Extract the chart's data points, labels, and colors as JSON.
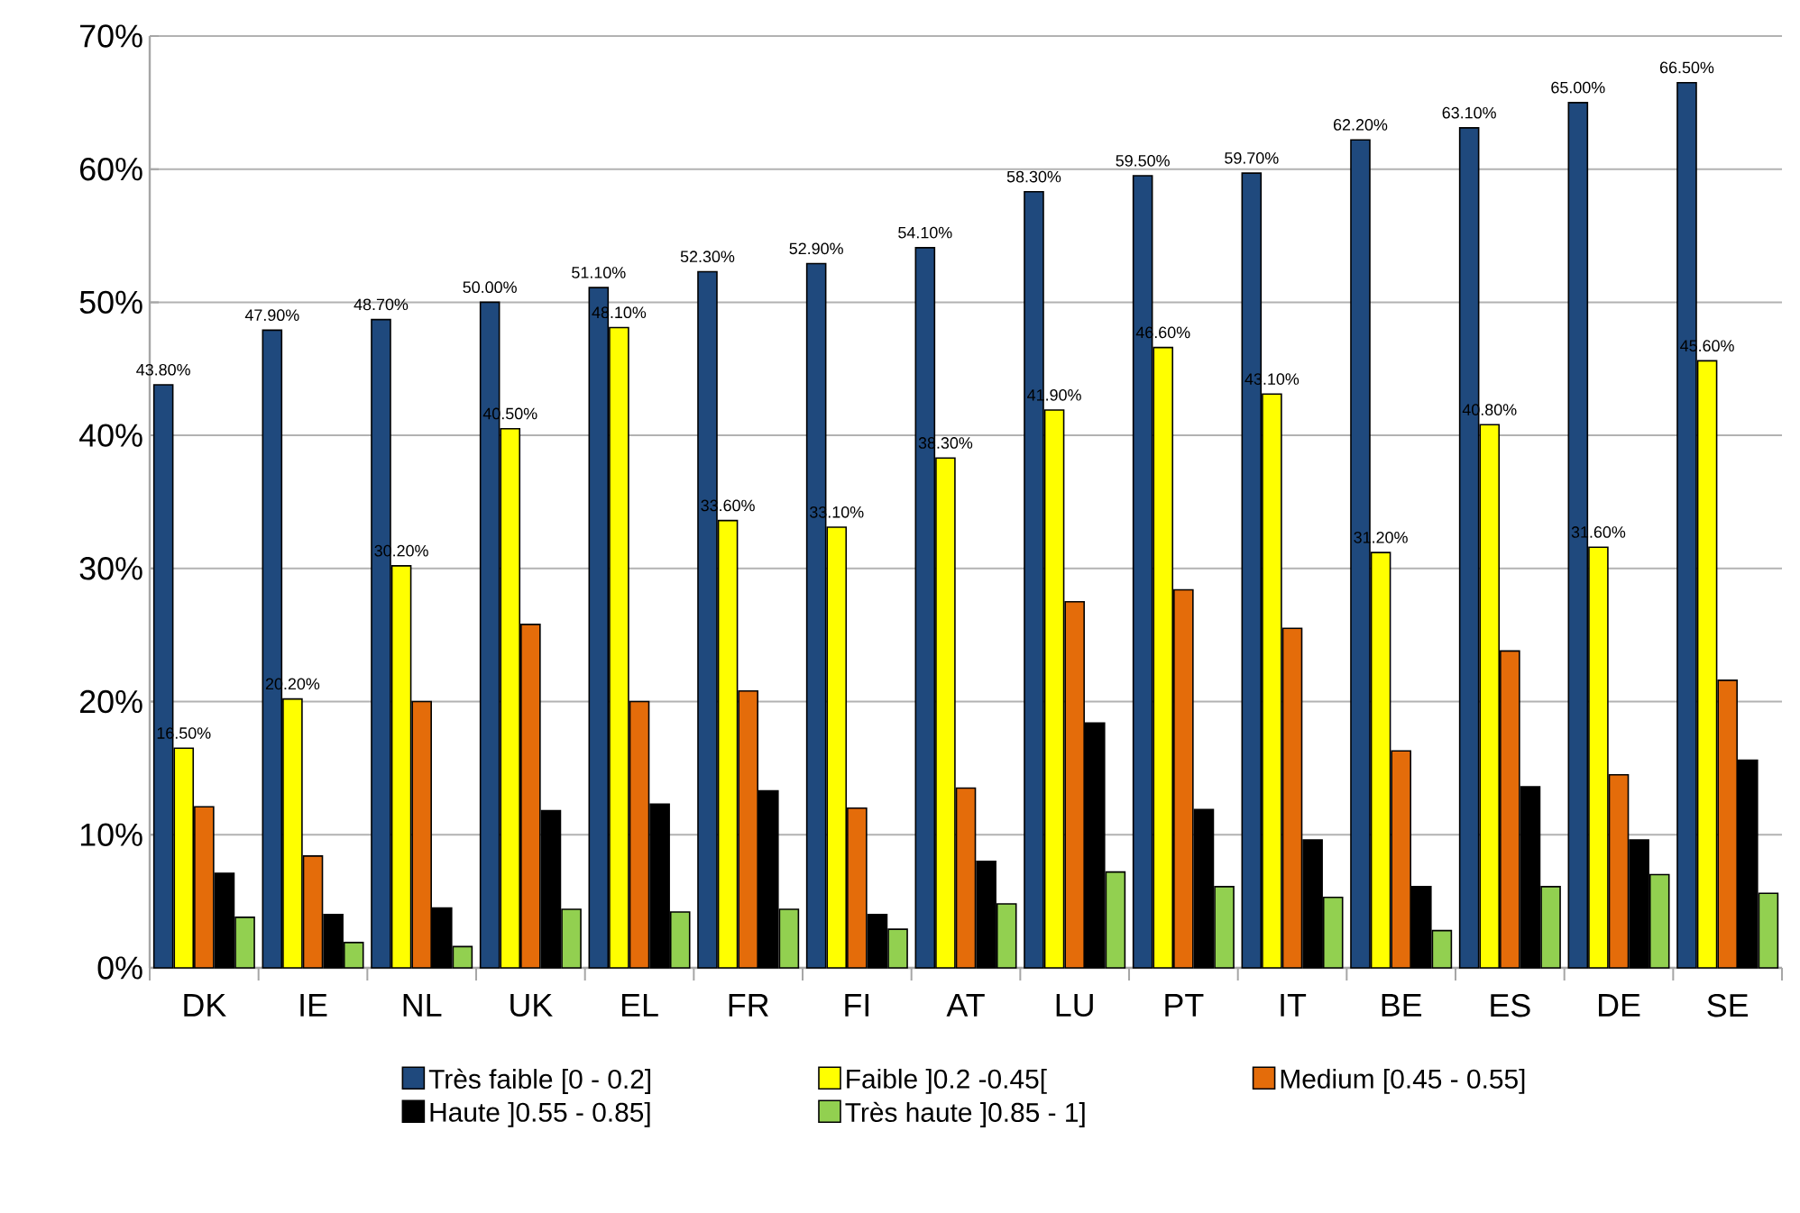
{
  "chart_data": {
    "type": "bar",
    "categories": [
      "DK",
      "IE",
      "NL",
      "UK",
      "EL",
      "FR",
      "FI",
      "AT",
      "LU",
      "PT",
      "IT",
      "BE",
      "ES",
      "DE",
      "SE"
    ],
    "series": [
      {
        "name": "Très faible [0 - 0.2]",
        "color": "#1f497d",
        "values": [
          43.8,
          47.9,
          48.7,
          50.0,
          51.1,
          52.3,
          52.9,
          54.1,
          58.3,
          59.5,
          59.7,
          62.2,
          63.1,
          65.0,
          66.5
        ],
        "value_labels": [
          "43.80%",
          "47.90%",
          "48.70%",
          "50.00%",
          "51.10%",
          "52.30%",
          "52.90%",
          "54.10%",
          "58.30%",
          "59.50%",
          "59.70%",
          "62.20%",
          "63.10%",
          "65.00%",
          "66.50%"
        ]
      },
      {
        "name": "Faible ]0.2 -0.45[",
        "color": "#ffff00",
        "values": [
          16.5,
          20.2,
          30.2,
          40.5,
          48.1,
          33.6,
          33.1,
          38.3,
          41.9,
          46.6,
          43.1,
          31.2,
          40.8,
          31.6,
          45.6
        ],
        "value_labels": [
          "16.50%",
          "20.20%",
          "30.20%",
          "40.50%",
          "48.10%",
          "33.60%",
          "33.10%",
          "38.30%",
          "41.90%",
          "46.60%",
          "43.10%",
          "31.20%",
          "40.80%",
          "31.60%",
          "45.60%"
        ]
      },
      {
        "name": "Medium  [0.45 - 0.55]",
        "color": "#e46c0a",
        "values": [
          12.1,
          8.4,
          20.0,
          25.8,
          20.0,
          20.8,
          12.0,
          13.5,
          27.5,
          28.4,
          25.5,
          16.3,
          23.8,
          14.5,
          21.6
        ]
      },
      {
        "name": "Haute  ]0.55 - 0.85]",
        "color": "#000000",
        "values": [
          7.1,
          4.0,
          4.5,
          11.8,
          12.3,
          13.3,
          4.0,
          8.0,
          18.4,
          11.9,
          9.6,
          6.1,
          13.6,
          9.6,
          15.6
        ]
      },
      {
        "name": "Très haute  ]0.85 - 1]",
        "color": "#92d050",
        "values": [
          3.8,
          1.9,
          1.6,
          4.4,
          4.2,
          4.4,
          2.9,
          4.8,
          7.2,
          6.1,
          5.3,
          2.8,
          6.1,
          7.0,
          5.6
        ]
      }
    ],
    "ylim": [
      0,
      70
    ],
    "yticks": [
      {
        "value": 0,
        "label": "0%"
      },
      {
        "value": 10,
        "label": "10%"
      },
      {
        "value": 20,
        "label": "20%"
      },
      {
        "value": 30,
        "label": "30%"
      },
      {
        "value": 40,
        "label": "40%"
      },
      {
        "value": 50,
        "label": "50%"
      },
      {
        "value": 60,
        "label": "60%"
      },
      {
        "value": 70,
        "label": "70%"
      }
    ],
    "grid": "y",
    "legend": "bottom"
  }
}
